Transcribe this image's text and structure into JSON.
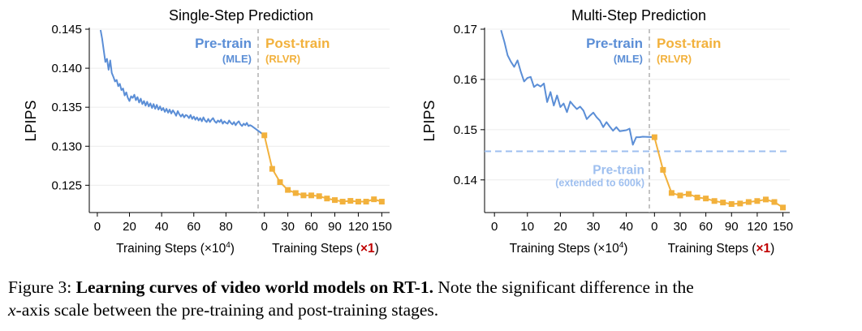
{
  "chart_data": [
    {
      "type": "line",
      "title": "Single-Step Prediction",
      "ylabel": "LPIPS",
      "ylim": [
        0.1215,
        0.145
      ],
      "yticks": [
        "0.125",
        "0.130",
        "0.135",
        "0.140",
        "0.145"
      ],
      "pretrain": {
        "label": "Pre-train",
        "sublabel": "(MLE)",
        "xlabel_text": "Training Steps (×10",
        "xlabel_sup": "4",
        "xlabel_end": ")",
        "xlim": [
          -5,
          100
        ],
        "xticks": [
          "0",
          "20",
          "40",
          "60",
          "80"
        ],
        "color": "#5b8ed6",
        "x": [
          2,
          3,
          4,
          5,
          6,
          7,
          8,
          9,
          10,
          11,
          12,
          13,
          14,
          15,
          16,
          17,
          18,
          19,
          20,
          21,
          22,
          23,
          24,
          25,
          26,
          27,
          28,
          29,
          30,
          31,
          32,
          33,
          34,
          35,
          36,
          37,
          38,
          39,
          40,
          41,
          42,
          43,
          44,
          45,
          46,
          47,
          48,
          49,
          50,
          51,
          52,
          53,
          54,
          55,
          56,
          57,
          58,
          59,
          60,
          61,
          62,
          63,
          64,
          65,
          66,
          67,
          68,
          69,
          70,
          71,
          72,
          73,
          74,
          75,
          76,
          77,
          78,
          79,
          80,
          81,
          82,
          83,
          84,
          85,
          86,
          87,
          88,
          89,
          90,
          91,
          92,
          93,
          94,
          95,
          96
        ],
        "y": [
          0.1449,
          0.1438,
          0.1423,
          0.1408,
          0.1412,
          0.1398,
          0.141,
          0.1394,
          0.1389,
          0.1383,
          0.1385,
          0.1377,
          0.138,
          0.1372,
          0.1374,
          0.1365,
          0.1369,
          0.1362,
          0.1358,
          0.1364,
          0.1362,
          0.1366,
          0.1359,
          0.1363,
          0.1356,
          0.1361,
          0.1354,
          0.1358,
          0.1352,
          0.1357,
          0.1351,
          0.1355,
          0.1349,
          0.1354,
          0.1348,
          0.1353,
          0.1347,
          0.1351,
          0.1346,
          0.1349,
          0.1344,
          0.1348,
          0.1343,
          0.1347,
          0.1342,
          0.1346,
          0.1343,
          0.1339,
          0.1345,
          0.1341,
          0.1338,
          0.1341,
          0.1337,
          0.134,
          0.1339,
          0.1336,
          0.134,
          0.1335,
          0.1338,
          0.1334,
          0.1337,
          0.1333,
          0.1336,
          0.1332,
          0.1337,
          0.1333,
          0.1331,
          0.1335,
          0.1331,
          0.1334,
          0.1336,
          0.1332,
          0.133,
          0.1333,
          0.1331,
          0.1334,
          0.1329,
          0.1332,
          0.133,
          0.1329,
          0.1333,
          0.133,
          0.1328,
          0.1331,
          0.1327,
          0.133,
          0.1332,
          0.1328,
          0.1326,
          0.1329,
          0.1327,
          0.133,
          0.1326,
          0.1327,
          0.1326
        ]
      },
      "posttrain": {
        "label": "Post-train",
        "sublabel": "(RLVR)",
        "xlabel_text": "Training Steps (",
        "xlabel_emph": "×1",
        "xlabel_end": ")",
        "xlim": [
          -8,
          160
        ],
        "xticks": [
          "0",
          "30",
          "60",
          "90",
          "120",
          "150"
        ],
        "color": "#f2b13c",
        "x": [
          0,
          10,
          20,
          30,
          40,
          50,
          60,
          70,
          80,
          90,
          100,
          110,
          120,
          130,
          140,
          150
        ],
        "y": [
          0.1314,
          0.1271,
          0.1254,
          0.1244,
          0.124,
          0.1237,
          0.1237,
          0.1236,
          0.1233,
          0.1231,
          0.1229,
          0.123,
          0.1229,
          0.1229,
          0.1232,
          0.1229
        ]
      }
    },
    {
      "type": "line",
      "title": "Multi-Step Prediction",
      "ylabel": "LPIPS",
      "ylim": [
        0.1335,
        0.17
      ],
      "yticks": [
        "0.14",
        "0.15",
        "0.16",
        "0.17"
      ],
      "hline": {
        "y": 0.1457,
        "label": "Pre-train",
        "sublabel": "(extended to 600k)",
        "color": "#9ebfef"
      },
      "pretrain": {
        "label": "Pre-train",
        "sublabel": "(MLE)",
        "xlabel_text": "Training Steps (×10",
        "xlabel_sup": "4",
        "xlabel_end": ")",
        "xlim": [
          -3,
          47
        ],
        "xticks": [
          "0",
          "10",
          "20",
          "30",
          "40"
        ],
        "color": "#5b8ed6",
        "x": [
          2,
          3,
          4,
          5,
          6,
          7,
          8,
          9,
          10,
          11,
          12,
          13,
          14,
          15,
          16,
          17,
          18,
          19,
          20,
          21,
          22,
          23,
          24,
          25,
          26,
          27,
          28,
          29,
          30,
          31,
          32,
          33,
          34,
          35,
          36,
          37,
          38,
          39,
          40,
          41,
          42,
          43,
          44,
          45
        ],
        "y": [
          0.1698,
          0.1675,
          0.1648,
          0.1635,
          0.1625,
          0.1638,
          0.1615,
          0.1596,
          0.1603,
          0.1605,
          0.1585,
          0.159,
          0.1586,
          0.1592,
          0.1555,
          0.1575,
          0.1548,
          0.1568,
          0.1545,
          0.1552,
          0.1535,
          0.1556,
          0.1548,
          0.1541,
          0.1546,
          0.1538,
          0.1521,
          0.1528,
          0.1534,
          0.1525,
          0.1518,
          0.1505,
          0.1515,
          0.1506,
          0.1498,
          0.1505,
          0.1497,
          0.1498,
          0.1499,
          0.1502,
          0.147,
          0.1485,
          0.1485,
          0.1486
        ]
      },
      "posttrain": {
        "label": "Post-train",
        "sublabel": "(RLVR)",
        "xlabel_text": "Training Steps (",
        "xlabel_emph": "×1",
        "xlabel_end": ")",
        "xlim": [
          -6,
          158
        ],
        "xticks": [
          "0",
          "30",
          "60",
          "90",
          "120",
          "150"
        ],
        "color": "#f2b13c",
        "x": [
          0,
          10,
          20,
          30,
          40,
          50,
          60,
          70,
          80,
          90,
          100,
          110,
          120,
          130,
          140,
          150
        ],
        "y": [
          0.1485,
          0.142,
          0.1374,
          0.1369,
          0.1372,
          0.1365,
          0.1363,
          0.1358,
          0.1355,
          0.1352,
          0.1353,
          0.1356,
          0.1358,
          0.1361,
          0.1356,
          0.1345
        ]
      }
    }
  ],
  "caption": {
    "prefix": "Figure 3: ",
    "bold": "Learning curves of video world models on RT-1.",
    "rest": " Note the significant difference in the",
    "line2_var": "x",
    "line2_rest": "-axis scale between the pre-training and post-training stages."
  }
}
